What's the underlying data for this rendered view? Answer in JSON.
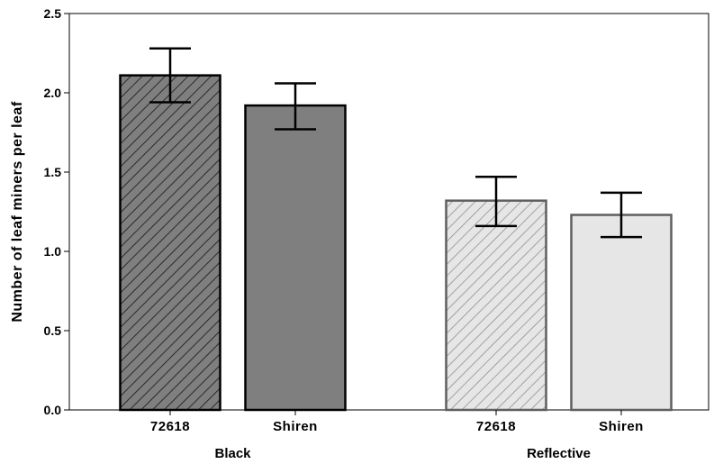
{
  "chart_data": {
    "type": "bar",
    "title": "",
    "ylabel": "Number of leaf miners per leaf",
    "xlabel": "",
    "ylim": [
      0,
      2.5
    ],
    "yticks": [
      "0.0",
      "0.5",
      "1.0",
      "1.5",
      "2.0",
      "2.5"
    ],
    "grid": false,
    "legend": "none",
    "groups": [
      {
        "name": "Black",
        "bars": [
          {
            "category": "72618",
            "value": 2.11,
            "error_low": 1.94,
            "error_high": 2.28,
            "fill": "#7f7f7f",
            "stroke": "#000000",
            "hatched": true
          },
          {
            "category": "Shiren",
            "value": 1.92,
            "error_low": 1.77,
            "error_high": 2.06,
            "fill": "#7f7f7f",
            "stroke": "#000000",
            "hatched": false
          }
        ]
      },
      {
        "name": "Reflective",
        "bars": [
          {
            "category": "72618",
            "value": 1.32,
            "error_low": 1.16,
            "error_high": 1.47,
            "fill": "#e6e6e6",
            "stroke": "#5f5f5f",
            "hatched": true
          },
          {
            "category": "Shiren",
            "value": 1.23,
            "error_low": 1.09,
            "error_high": 1.37,
            "fill": "#e6e6e6",
            "stroke": "#5f5f5f",
            "hatched": false
          }
        ]
      }
    ]
  }
}
